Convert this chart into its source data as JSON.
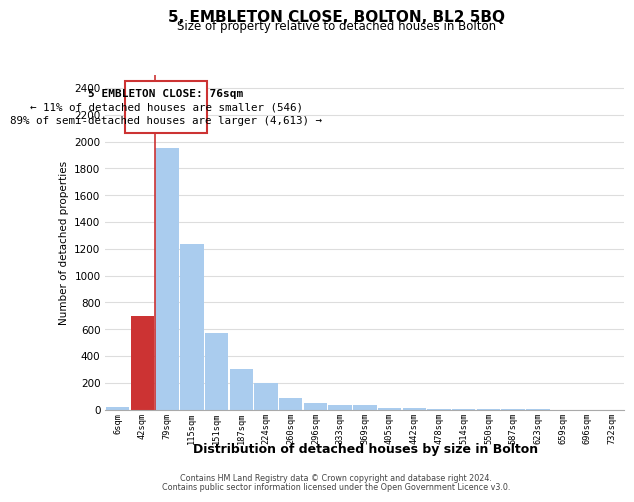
{
  "title": "5, EMBLETON CLOSE, BOLTON, BL2 5BQ",
  "subtitle": "Size of property relative to detached houses in Bolton",
  "xlabel": "Distribution of detached houses by size in Bolton",
  "ylabel": "Number of detached properties",
  "bar_labels": [
    "6sqm",
    "42sqm",
    "79sqm",
    "115sqm",
    "151sqm",
    "187sqm",
    "224sqm",
    "260sqm",
    "296sqm",
    "333sqm",
    "369sqm",
    "405sqm",
    "442sqm",
    "478sqm",
    "514sqm",
    "550sqm",
    "587sqm",
    "623sqm",
    "659sqm",
    "696sqm",
    "732sqm"
  ],
  "bar_values": [
    15,
    700,
    1950,
    1235,
    570,
    300,
    200,
    85,
    45,
    35,
    30,
    10,
    8,
    5,
    3,
    2,
    1,
    1,
    0,
    0,
    0
  ],
  "bar_color": "#aaccee",
  "highlight_bar_index": 1,
  "highlight_color": "#cc3333",
  "property_line_x": 1.5,
  "annotation_title": "5 EMBLETON CLOSE: 76sqm",
  "annotation_line1": "← 11% of detached houses are smaller (546)",
  "annotation_line2": "89% of semi-detached houses are larger (4,613) →",
  "ylim": [
    0,
    2500
  ],
  "yticks": [
    0,
    200,
    400,
    600,
    800,
    1000,
    1200,
    1400,
    1600,
    1800,
    2000,
    2200,
    2400
  ],
  "footer_line1": "Contains HM Land Registry data © Crown copyright and database right 2024.",
  "footer_line2": "Contains public sector information licensed under the Open Government Licence v3.0.",
  "bg_color": "#ffffff",
  "grid_color": "#dddddd"
}
